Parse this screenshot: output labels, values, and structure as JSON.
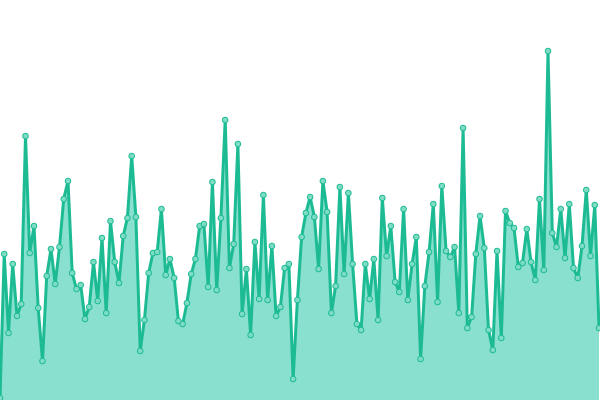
{
  "chart_data": {
    "type": "area",
    "title": "",
    "xlabel": "",
    "ylabel": "",
    "ylim": [
      0,
      400
    ],
    "grid": false,
    "legend": "none",
    "markers": true,
    "colors": {
      "line": "#1dbb94",
      "fill": "#8ae0cf",
      "marker_fill": "#7fdcc4",
      "marker_stroke": "#1dbb94"
    },
    "values": [
      2,
      146,
      67,
      136,
      84,
      96,
      264,
      147,
      174,
      92,
      39,
      124,
      151,
      116,
      153,
      201,
      219,
      127,
      111,
      115,
      81,
      93,
      138,
      99,
      162,
      87,
      179,
      138,
      117,
      164,
      182,
      244,
      183,
      49,
      80,
      127,
      147,
      148,
      191,
      125,
      141,
      122,
      79,
      76,
      97,
      126,
      141,
      174,
      176,
      113,
      218,
      110,
      182,
      280,
      132,
      156,
      256,
      86,
      131,
      65,
      158,
      101,
      205,
      100,
      154,
      84,
      93,
      132,
      136,
      21,
      100,
      163,
      187,
      203,
      183,
      131,
      219,
      188,
      87,
      114,
      213,
      126,
      207,
      136,
      76,
      70,
      136,
      101,
      141,
      80,
      202,
      144,
      174,
      118,
      108,
      191,
      100,
      136,
      163,
      41,
      114,
      148,
      196,
      98,
      214,
      149,
      143,
      153,
      87,
      272,
      72,
      83,
      146,
      184,
      152,
      70,
      50,
      149,
      62,
      189,
      177,
      172,
      133,
      137,
      171,
      138,
      120,
      201,
      130,
      349,
      167,
      153,
      191,
      142,
      196,
      132,
      122,
      154,
      210,
      144,
      195,
      72
    ]
  }
}
